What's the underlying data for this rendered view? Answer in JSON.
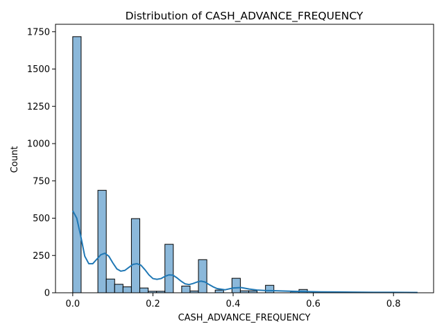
{
  "chart_data": {
    "type": "bar",
    "title": "Distribution of CASH_ADVANCE_FREQUENCY",
    "xlabel": "CASH_ADVANCE_FREQUENCY",
    "ylabel": "Count",
    "xlim": [
      -0.043,
      0.9
    ],
    "ylim": [
      0,
      1800
    ],
    "x_ticks": [
      0.0,
      0.2,
      0.4,
      0.6,
      0.8
    ],
    "x_tick_labels": [
      "0.0",
      "0.2",
      "0.4",
      "0.6",
      "0.8"
    ],
    "y_ticks": [
      0,
      250,
      500,
      750,
      1000,
      1250,
      1500,
      1750
    ],
    "y_tick_labels": [
      "0",
      "250",
      "500",
      "750",
      "1000",
      "1250",
      "1500",
      "1750"
    ],
    "grid": false,
    "bars": [
      {
        "x0": 0.0,
        "x1": 0.0209,
        "count": 1717
      },
      {
        "x0": 0.0627,
        "x1": 0.0836,
        "count": 687
      },
      {
        "x0": 0.0836,
        "x1": 0.1045,
        "count": 92
      },
      {
        "x0": 0.1045,
        "x1": 0.1254,
        "count": 57
      },
      {
        "x0": 0.1254,
        "x1": 0.1463,
        "count": 40
      },
      {
        "x0": 0.1463,
        "x1": 0.1672,
        "count": 497
      },
      {
        "x0": 0.1672,
        "x1": 0.1881,
        "count": 32
      },
      {
        "x0": 0.1881,
        "x1": 0.209,
        "count": 10
      },
      {
        "x0": 0.209,
        "x1": 0.2299,
        "count": 10
      },
      {
        "x0": 0.2299,
        "x1": 0.2508,
        "count": 325
      },
      {
        "x0": 0.2717,
        "x1": 0.2926,
        "count": 45
      },
      {
        "x0": 0.2926,
        "x1": 0.3135,
        "count": 12
      },
      {
        "x0": 0.3135,
        "x1": 0.3344,
        "count": 222
      },
      {
        "x0": 0.3553,
        "x1": 0.3762,
        "count": 18
      },
      {
        "x0": 0.3971,
        "x1": 0.418,
        "count": 97
      },
      {
        "x0": 0.418,
        "x1": 0.4389,
        "count": 13
      },
      {
        "x0": 0.4389,
        "x1": 0.4598,
        "count": 13
      },
      {
        "x0": 0.4807,
        "x1": 0.5016,
        "count": 50
      },
      {
        "x0": 0.5434,
        "x1": 0.5643,
        "count": 7
      },
      {
        "x0": 0.5643,
        "x1": 0.5852,
        "count": 22
      }
    ],
    "kde": {
      "x": [
        0.0,
        0.01,
        0.02,
        0.03,
        0.04,
        0.05,
        0.06,
        0.07,
        0.08,
        0.09,
        0.1,
        0.11,
        0.12,
        0.13,
        0.14,
        0.15,
        0.16,
        0.17,
        0.18,
        0.19,
        0.2,
        0.21,
        0.22,
        0.23,
        0.24,
        0.25,
        0.26,
        0.27,
        0.28,
        0.29,
        0.3,
        0.31,
        0.32,
        0.33,
        0.34,
        0.35,
        0.36,
        0.38,
        0.4,
        0.42,
        0.44,
        0.46,
        0.48,
        0.5,
        0.52,
        0.55,
        0.58,
        0.62,
        0.66,
        0.7,
        0.75,
        0.8,
        0.86
      ],
      "y": [
        550,
        500,
        380,
        245,
        195,
        195,
        225,
        255,
        265,
        245,
        200,
        160,
        145,
        150,
        170,
        190,
        195,
        185,
        155,
        120,
        95,
        90,
        95,
        110,
        120,
        118,
        100,
        78,
        60,
        55,
        62,
        72,
        78,
        72,
        55,
        40,
        28,
        20,
        32,
        35,
        25,
        18,
        15,
        14,
        12,
        10,
        8,
        6,
        5,
        4,
        3,
        3,
        2
      ]
    }
  }
}
